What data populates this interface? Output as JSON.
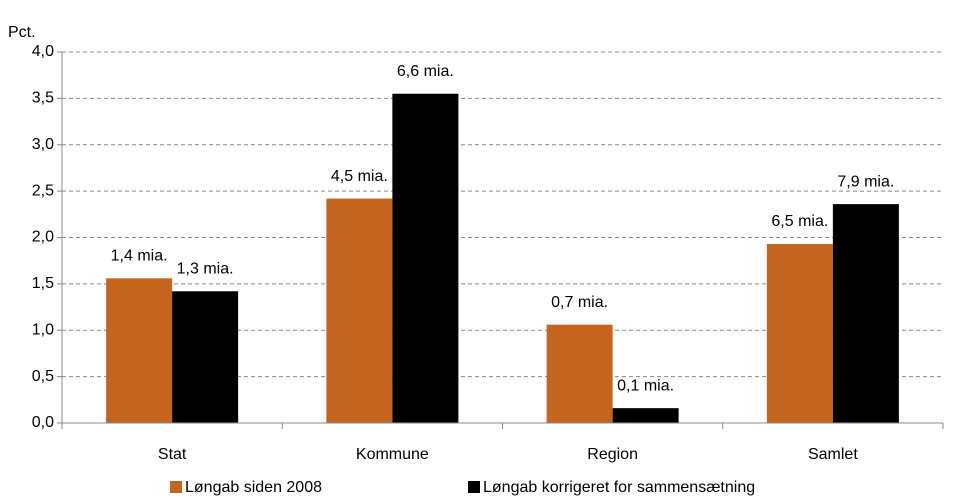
{
  "chart_data": {
    "type": "bar",
    "y_axis_label": "Pct.",
    "categories": [
      "Stat",
      "Kommune",
      "Region",
      "Samlet"
    ],
    "series": [
      {
        "name": "Løngab siden 2008",
        "color": "#c5641e",
        "values": [
          1.56,
          2.42,
          1.06,
          1.93
        ],
        "bar_labels": [
          "1,4 mia.",
          "4,5 mia.",
          "0,7 mia.",
          "6,5 mia."
        ]
      },
      {
        "name": "Løngab korrigeret for sammensætning",
        "color": "#000000",
        "values": [
          1.42,
          3.55,
          0.16,
          2.36
        ],
        "bar_labels": [
          "1,3 mia.",
          "6,6 mia.",
          "0,1 mia.",
          "7,9 mia."
        ]
      }
    ],
    "ylim": [
      0,
      4
    ],
    "yticks": [
      {
        "value": 0,
        "label": "0,0"
      },
      {
        "value": 0.5,
        "label": "0,5"
      },
      {
        "value": 1,
        "label": "1,0"
      },
      {
        "value": 1.5,
        "label": "1,5"
      },
      {
        "value": 2,
        "label": "2,0"
      },
      {
        "value": 2.5,
        "label": "2,5"
      },
      {
        "value": 3,
        "label": "3,0"
      },
      {
        "value": 3.5,
        "label": "3,5"
      },
      {
        "value": 4,
        "label": "4,0"
      }
    ],
    "grid": true,
    "legend": "bottom"
  }
}
